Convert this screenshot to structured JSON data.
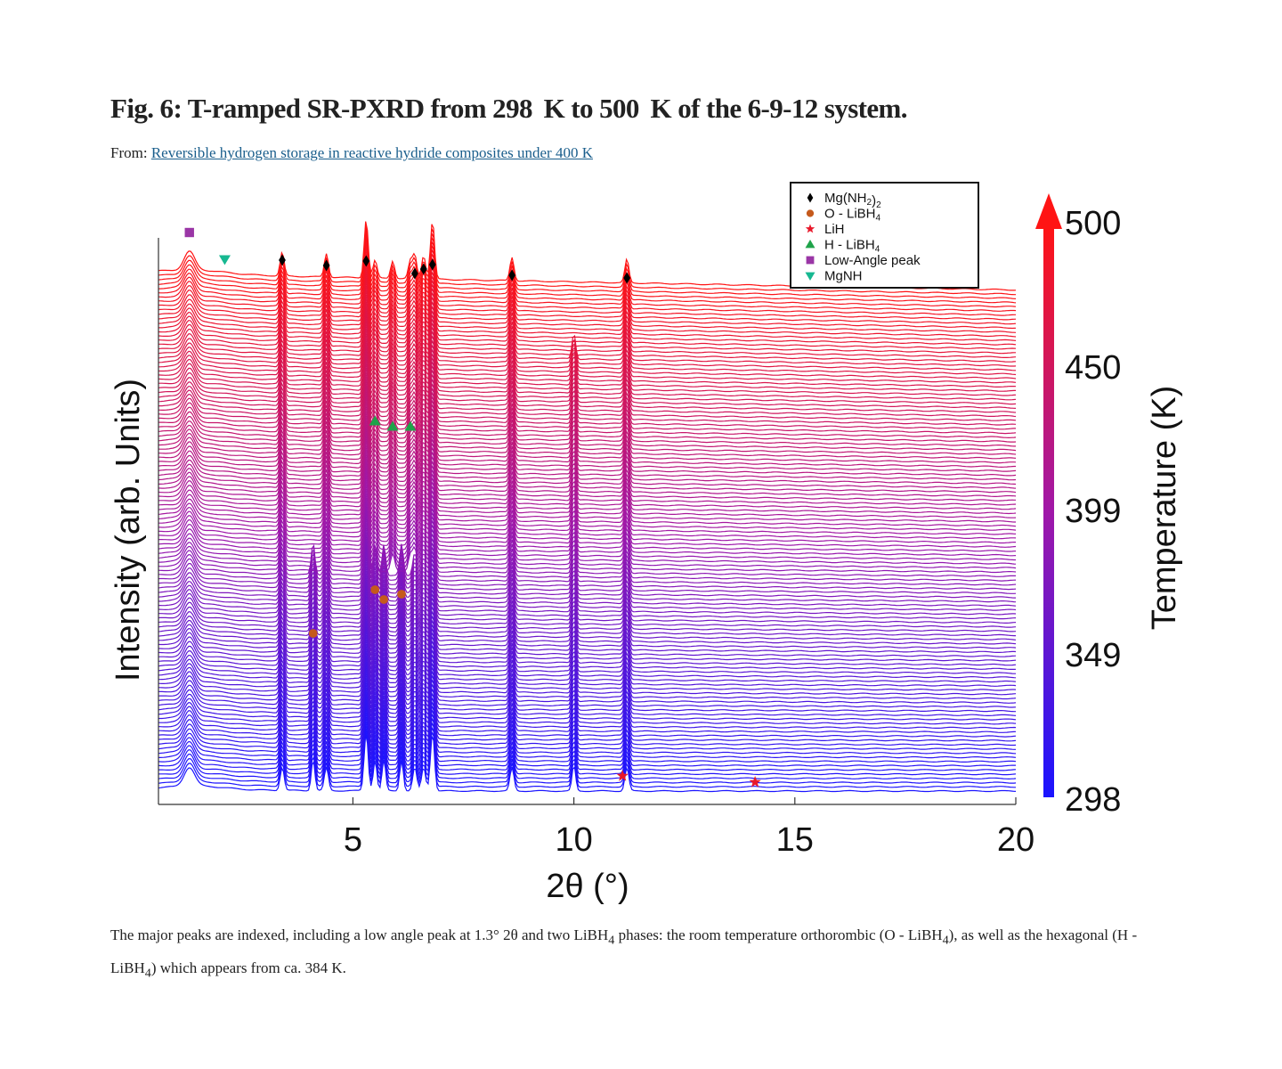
{
  "title": "Fig. 6: T-ramped SR-PXRD from 298  K to 500  K of the 6-9-12 system.",
  "from_prefix": "From: ",
  "from_link": "Reversible hydrogen storage in reactive hydride composites under 400 K",
  "caption": {
    "p1": "The major peaks are indexed, including a low angle peak at 1.3° 2θ and two LiBH",
    "sub1": "4",
    "p2": " phases: the room temperature orthorombic (O - LiBH",
    "sub2": "4",
    "p3": "), as well as the hexagonal (H - LiBH",
    "sub3": "4",
    "p4": ") which appears from ca. 384 K."
  },
  "chart_data": {
    "type": "line",
    "title": "",
    "xlabel": "2θ (°)",
    "ylabel": "Intensity (arb. Units)",
    "xlim": [
      0.6,
      20
    ],
    "xticks": [
      5,
      10,
      15,
      20
    ],
    "colorbar": {
      "label": "Temperature (K)",
      "range": [
        298,
        500
      ],
      "ticks": [
        "500",
        "450",
        "399",
        "349",
        "298"
      ],
      "color_low": "#1a14ff",
      "color_high": "#ff1414"
    },
    "series_count": 120,
    "h_libh4_onset_K": 384,
    "peaks": [
      {
        "phase": "Mg(NH2)2",
        "positions": [
          3.4,
          4.4,
          5.3,
          6.4,
          6.6,
          6.8,
          8.6,
          11.2
        ]
      },
      {
        "phase": "O - LiBH4",
        "positions": [
          4.1,
          5.5,
          5.7,
          6.1
        ]
      },
      {
        "phase": "LiH",
        "positions": [
          11.1,
          14.1
        ]
      },
      {
        "phase": "H - LiBH4",
        "positions": [
          5.5,
          5.9,
          6.3
        ]
      },
      {
        "phase": "Low-Angle peak",
        "positions": [
          1.3
        ]
      },
      {
        "phase": "MgNH",
        "positions": [
          2.1
        ]
      }
    ],
    "legend": {
      "placement": "top-right",
      "entries": [
        {
          "label": "Mg(NH",
          "sub": "2",
          "tail": ")",
          "sub2": "2",
          "marker": "diamond",
          "color": "#000000"
        },
        {
          "label": "O - LiBH",
          "sub": "4",
          "tail": "",
          "sub2": "",
          "marker": "circle",
          "color": "#c55a1c"
        },
        {
          "label": "LiH",
          "sub": "",
          "tail": "",
          "sub2": "",
          "marker": "star",
          "color": "#e8182a"
        },
        {
          "label": "H - LiBH",
          "sub": "4",
          "tail": "",
          "sub2": "",
          "marker": "triangle-up",
          "color": "#1fa34a"
        },
        {
          "label": "Low-Angle peak",
          "sub": "",
          "tail": "",
          "sub2": "",
          "marker": "square",
          "color": "#9a36a6"
        },
        {
          "label": "MgNH",
          "sub": "",
          "tail": "",
          "sub2": "",
          "marker": "triangle-down",
          "color": "#17b891"
        }
      ]
    }
  }
}
